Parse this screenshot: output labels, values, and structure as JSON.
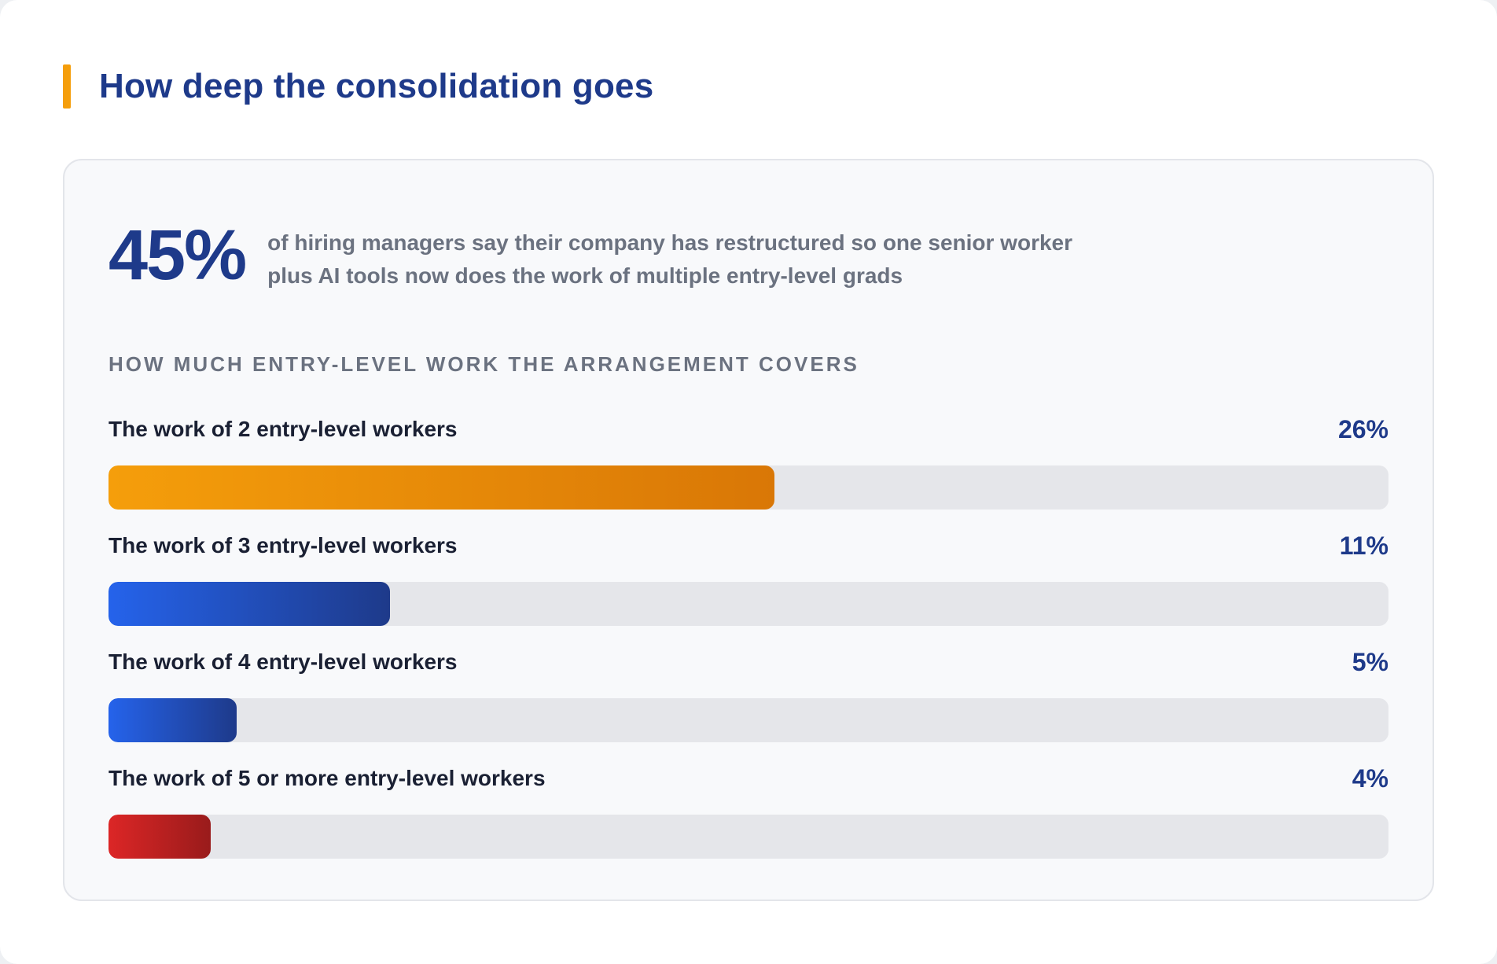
{
  "header": {
    "title": "How deep the consolidation goes"
  },
  "headline": {
    "value": "45%",
    "text": "of hiring managers say their company has restructured so one senior worker plus AI tools now does the work of multiple entry-level grads"
  },
  "section_label": "HOW MUCH ENTRY-LEVEL WORK THE ARRANGEMENT COVERS",
  "colors": {
    "accent": "#f59e0b",
    "title": "#1e3a8a",
    "track": "#e5e6ea"
  },
  "chart_data": {
    "type": "bar",
    "orientation": "horizontal",
    "title": "",
    "categories": [
      "The work of 2 entry-level workers",
      "The work of 3 entry-level workers",
      "The work of 4 entry-level workers",
      "The work of 5 or more entry-level workers"
    ],
    "values": [
      26,
      11,
      5,
      4
    ],
    "value_labels": [
      "26%",
      "11%",
      "5%",
      "4%"
    ],
    "xlim": [
      0,
      50
    ],
    "unit": "%",
    "grid": false,
    "bar_colors": [
      [
        "#f59e0b",
        "#d97706"
      ],
      [
        "#2563eb",
        "#1e3a8a"
      ],
      [
        "#2563eb",
        "#1e3a8a"
      ],
      [
        "#dc2626",
        "#991b1b"
      ]
    ]
  }
}
